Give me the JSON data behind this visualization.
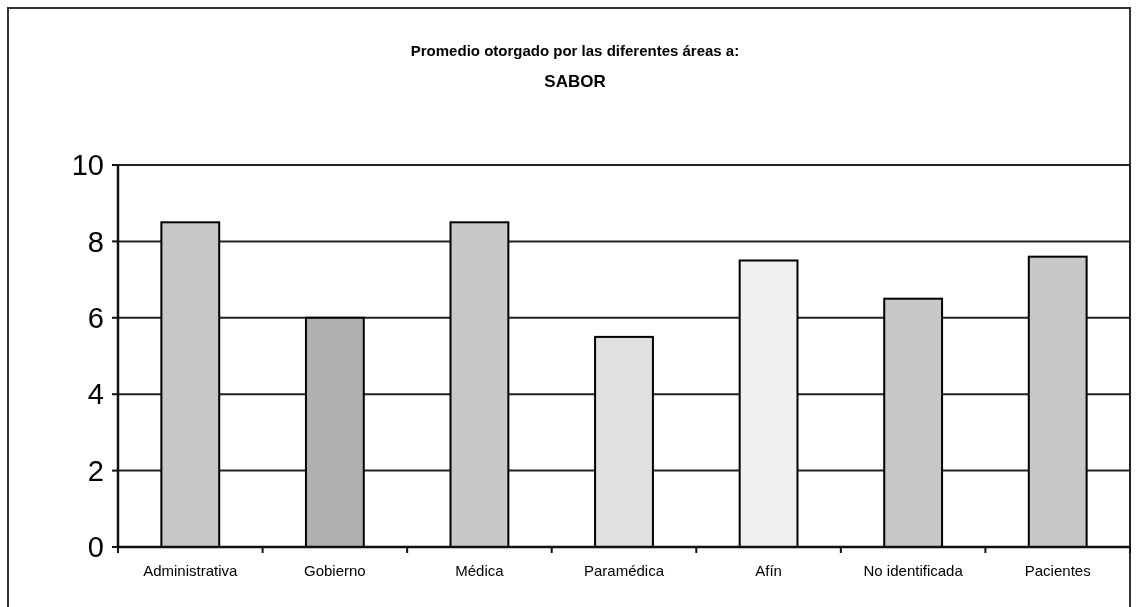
{
  "chart_data": {
    "type": "bar",
    "title": "Promedio otorgado por las diferentes áreas a:",
    "subtitle": "SABOR",
    "categories": [
      "Administrativa",
      "Gobierno",
      "Médica",
      "Paramédica",
      "Afín",
      "No identificada",
      "Pacientes"
    ],
    "values": [
      8.5,
      6,
      8.5,
      5.5,
      7.5,
      6.5,
      7.6
    ],
    "colors": [
      "#c8c8c8",
      "#b0b0b0",
      "#c8c8c8",
      "#e0e0e0",
      "#f0f0f0",
      "#c8c8c8",
      "#c8c8c8"
    ],
    "ylim": [
      0,
      10
    ],
    "yticks": [
      0,
      2,
      4,
      6,
      8,
      10
    ],
    "grid": "y"
  }
}
